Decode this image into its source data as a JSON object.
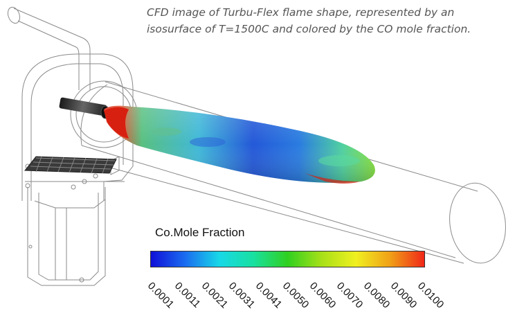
{
  "caption": "CFD image of Turbu-Flex flame shape, represented by an isosurface of T=1500C and colored by the CO mole fraction.",
  "legend": {
    "title": "Co.Mole Fraction",
    "ticks": [
      "0.0001",
      "0.0011",
      "0.0021",
      "0.0031",
      "0.0041",
      "0.0050",
      "0.0060",
      "0.0070",
      "0.0080",
      "0.0090",
      "0.0100"
    ],
    "colormap": [
      "#1010d8",
      "#1a6cf0",
      "#18d8e8",
      "#18e0a0",
      "#30d020",
      "#a8e018",
      "#f0f020",
      "#f0a018",
      "#f02818"
    ]
  },
  "flame_colors": {
    "tip_green": "#7fe040",
    "body_cyan": "#38c8d0",
    "core_blue": "#2448d8",
    "base_red": "#d82010"
  }
}
